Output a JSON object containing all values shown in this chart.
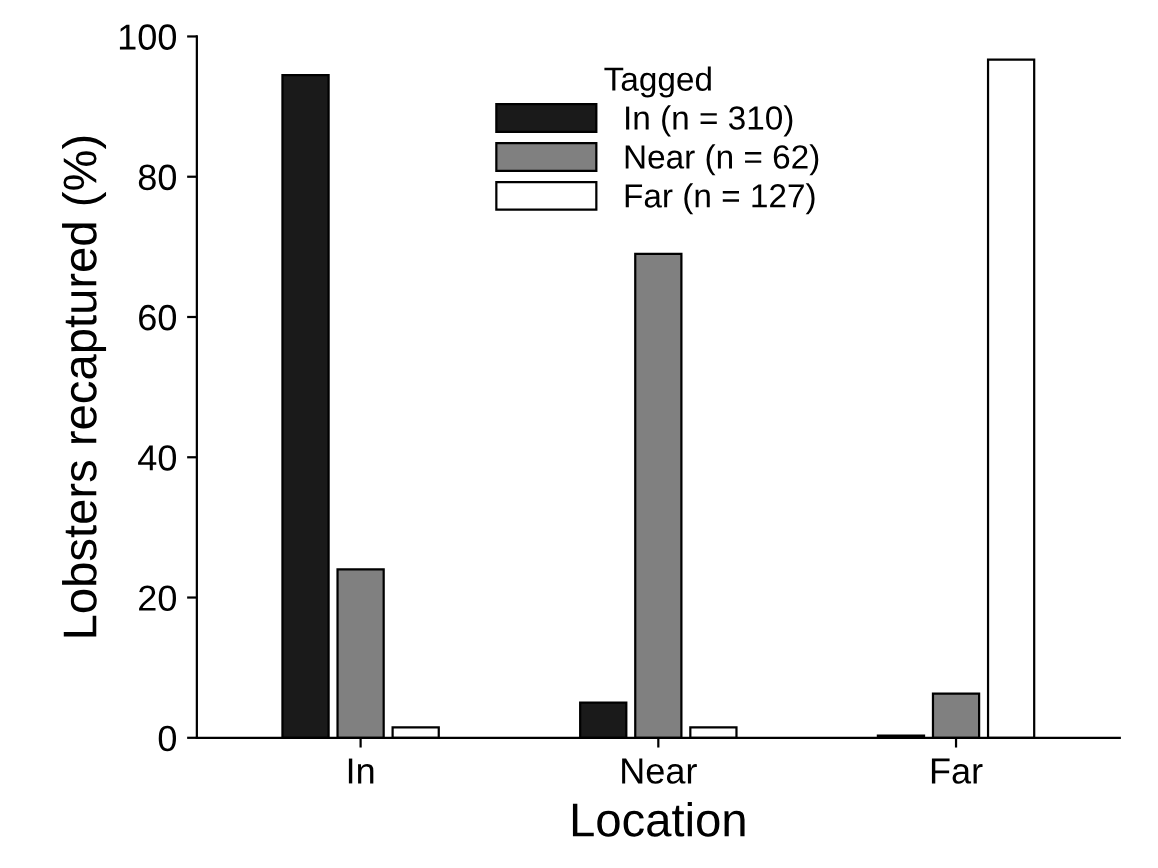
{
  "chart_data": {
    "type": "bar",
    "xlabel": "Location",
    "ylabel": "Lobsters recaptured (%)",
    "legend_title": "Tagged",
    "categories": [
      "In",
      "Near",
      "Far"
    ],
    "series": [
      {
        "name": "In (n = 310)",
        "color": "#1a1a1a",
        "values": [
          94.5,
          5,
          0.3
        ]
      },
      {
        "name": "Near (n = 62)",
        "color": "#808080",
        "values": [
          24,
          69,
          6.3
        ]
      },
      {
        "name": "Far (n = 127)",
        "color": "#ffffff",
        "values": [
          1.5,
          1.5,
          96.7
        ]
      }
    ],
    "ylim": [
      0,
      100
    ],
    "yticks": [
      0,
      20,
      40,
      60,
      80,
      100
    ],
    "grid": false,
    "legend": "top"
  }
}
